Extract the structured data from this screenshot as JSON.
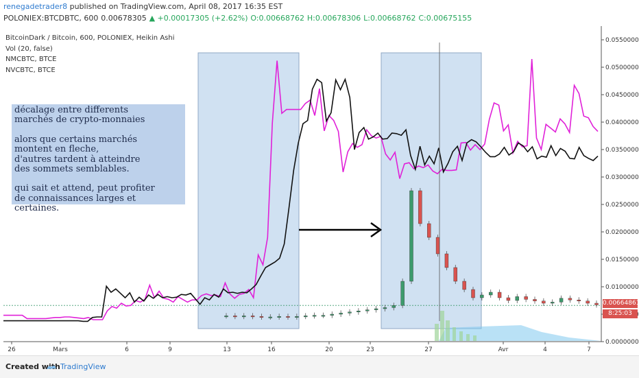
{
  "header": {
    "author": "renegadetrader8",
    "published": " published on TradingView.com, April 08, 2017 16:35 EST",
    "symbol_line": "POLONIEX:BTCDBTC, 600",
    "last": "0.00678305",
    "change": "▲ +0.00017305 (+2.62%)",
    "o": "O:0.00668762",
    "h": "H:0.00678306",
    "l": "L:0.00668762",
    "c": "C:0.00675155"
  },
  "legend": [
    "BitcoinDark / Bitcoin, 600, POLONIEX, Heikin Ashi",
    "Vol (20, false)",
    "NMCBTC, BTCE",
    "NVCBTC, BTCE"
  ],
  "annotation": {
    "p1": [
      "décalage entre differents",
      "marchés de crypto-monnaies"
    ],
    "p2": [
      "alors que certains marchés",
      "montent en fleche,",
      "d'autres tardent à atteindre",
      "des sommets semblables."
    ],
    "p3": [
      "qui sait et attend, peut profiter",
      "de connaissances larges et certaines."
    ]
  },
  "price_labels": {
    "current": "0.00664861",
    "timer": "8:25:03"
  },
  "footer": {
    "created": "Created with",
    "brand": "TradingView"
  },
  "colors": {
    "magenta": "#e020d8",
    "black": "#111111",
    "highlight": "#a9c9e8",
    "up": "#3d9b6d",
    "down": "#d9534f",
    "volume": "#7fc8ef"
  },
  "chart_data": {
    "type": "line",
    "y_axis": {
      "range": [
        0,
        0.057
      ],
      "ticks": [
        "0.05500000",
        "0.05000000",
        "0.04500000",
        "0.04000000",
        "0.03500000",
        "0.03000000",
        "0.02500000",
        "0.02000000",
        "0.01500000",
        "0.01000000",
        "0.00500000",
        "0.00000000"
      ]
    },
    "x_ticks": [
      "26",
      "Mars",
      "6",
      "9",
      "13",
      "16",
      "20",
      "23",
      "27",
      "Avr",
      "4",
      "7"
    ],
    "series": [
      {
        "color": "#e020d8",
        "values": [
          0.0048,
          0.0048,
          0.0048,
          0.0048,
          0.0048,
          0.0042,
          0.0042,
          0.0042,
          0.0042,
          0.0042,
          0.0043,
          0.0044,
          0.0044,
          0.0045,
          0.0045,
          0.0044,
          0.0043,
          0.0042,
          0.0044,
          0.004,
          0.004,
          0.004,
          0.0056,
          0.0064,
          0.0061,
          0.007,
          0.0065,
          0.0066,
          0.0075,
          0.0072,
          0.0077,
          0.0103,
          0.008,
          0.0092,
          0.0079,
          0.0077,
          0.0072,
          0.0082,
          0.0077,
          0.0072,
          0.0076,
          0.0076,
          0.0084,
          0.0087,
          0.0084,
          0.0085,
          0.0082,
          0.0107,
          0.0087,
          0.0079,
          0.0086,
          0.0088,
          0.0095,
          0.008,
          0.0158,
          0.014,
          0.019,
          0.0398,
          0.0512,
          0.0416,
          0.0423,
          0.0423,
          0.0423,
          0.0423,
          0.0434,
          0.044,
          0.0412,
          0.0461,
          0.0384,
          0.0412,
          0.0403,
          0.0383,
          0.0309,
          0.0346,
          0.0361,
          0.0354,
          0.0359,
          0.0386,
          0.0375,
          0.0371,
          0.0374,
          0.0342,
          0.0331,
          0.0345,
          0.0297,
          0.0324,
          0.0326,
          0.0315,
          0.032,
          0.0317,
          0.0322,
          0.0311,
          0.0306,
          0.0314,
          0.0312,
          0.0312,
          0.0313,
          0.0362,
          0.0363,
          0.0349,
          0.0359,
          0.035,
          0.036,
          0.0405,
          0.0435,
          0.0431,
          0.0384,
          0.0395,
          0.0344,
          0.0365,
          0.0355,
          0.0357,
          0.0515,
          0.0371,
          0.035,
          0.0396,
          0.0389,
          0.0382,
          0.0406,
          0.0397,
          0.0381,
          0.0467,
          0.0452,
          0.0411,
          0.0408,
          0.0392,
          0.0383
        ]
      },
      {
        "color": "#111111",
        "values": [
          0.0038,
          0.0038,
          0.0038,
          0.0038,
          0.0038,
          0.0038,
          0.0038,
          0.0038,
          0.0038,
          0.0038,
          0.0038,
          0.0038,
          0.0038,
          0.0038,
          0.0038,
          0.0038,
          0.0038,
          0.0037,
          0.0037,
          0.0044,
          0.0045,
          0.0045,
          0.0101,
          0.009,
          0.0096,
          0.0088,
          0.008,
          0.0089,
          0.0072,
          0.0081,
          0.0074,
          0.0085,
          0.0079,
          0.0086,
          0.008,
          0.0082,
          0.008,
          0.0081,
          0.0086,
          0.0085,
          0.0088,
          0.0078,
          0.0068,
          0.008,
          0.0076,
          0.0086,
          0.0081,
          0.0096,
          0.0089,
          0.009,
          0.0088,
          0.009,
          0.0089,
          0.0096,
          0.0104,
          0.012,
          0.0135,
          0.014,
          0.0145,
          0.0152,
          0.0178,
          0.0243,
          0.0312,
          0.0362,
          0.0397,
          0.0403,
          0.046,
          0.0478,
          0.0472,
          0.0402,
          0.0417,
          0.0477,
          0.0459,
          0.0478,
          0.0445,
          0.035,
          0.0381,
          0.039,
          0.0369,
          0.0373,
          0.038,
          0.0369,
          0.037,
          0.038,
          0.0379,
          0.0376,
          0.0386,
          0.0339,
          0.0314,
          0.0356,
          0.0322,
          0.0338,
          0.0324,
          0.0353,
          0.0309,
          0.0325,
          0.0346,
          0.0356,
          0.033,
          0.0362,
          0.0368,
          0.0364,
          0.0355,
          0.0345,
          0.0337,
          0.0337,
          0.0342,
          0.0354,
          0.034,
          0.0346,
          0.0362,
          0.0357,
          0.0346,
          0.0355,
          0.0333,
          0.0338,
          0.0336,
          0.0357,
          0.0339,
          0.0352,
          0.0347,
          0.0334,
          0.0333,
          0.0354,
          0.0339,
          0.0334,
          0.033,
          0.0338
        ]
      },
      {
        "candles_close": [
          0.0047,
          0.0046,
          0.0047,
          0.0046,
          0.0045,
          0.0045,
          0.0046,
          0.0045,
          0.0046,
          0.0047,
          0.0048,
          0.0048,
          0.005,
          0.0052,
          0.0054,
          0.0056,
          0.0058,
          0.006,
          0.0062,
          0.0066,
          0.011,
          0.0275,
          0.0215,
          0.019,
          0.016,
          0.0135,
          0.011,
          0.0095,
          0.008,
          0.0085,
          0.009,
          0.008,
          0.0075,
          0.0082,
          0.0077,
          0.0074,
          0.007,
          0.0072,
          0.0079,
          0.0076,
          0.0074,
          0.007,
          0.0067
        ]
      }
    ]
  }
}
